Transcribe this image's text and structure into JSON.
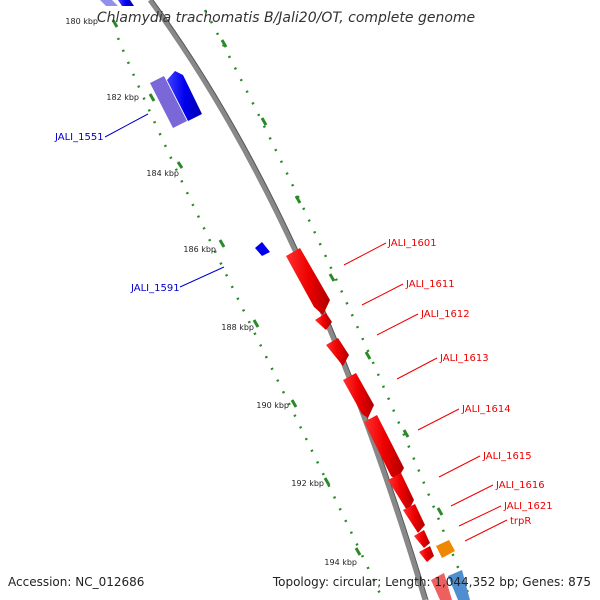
{
  "title": "Chlamydia trachomatis B/Jali20/OT, complete genome",
  "footer": {
    "accession": "Accession: NC_012686",
    "topology": "Topology: circular; Length: 1,044,352 bp; Genes: 875"
  },
  "colors": {
    "forward_strand": "#0000ee",
    "reverse_strand": "#ee0000",
    "rna": "#ee8800",
    "backbone": "#888888",
    "ticks": "#2a8a2a"
  },
  "ticks": [
    "180 kbp",
    "182 kbp",
    "184 kbp",
    "186 kbp",
    "188 kbp",
    "190 kbp",
    "192 kbp",
    "194 kbp"
  ],
  "forward_labels": [
    "JALI_1551",
    "JALI_1591"
  ],
  "reverse_labels": [
    "JALI_1601",
    "JALI_1611",
    "JALI_1612",
    "JALI_1613",
    "JALI_1614",
    "JALI_1615",
    "JALI_1616",
    "JALI_1621",
    "trpR"
  ]
}
